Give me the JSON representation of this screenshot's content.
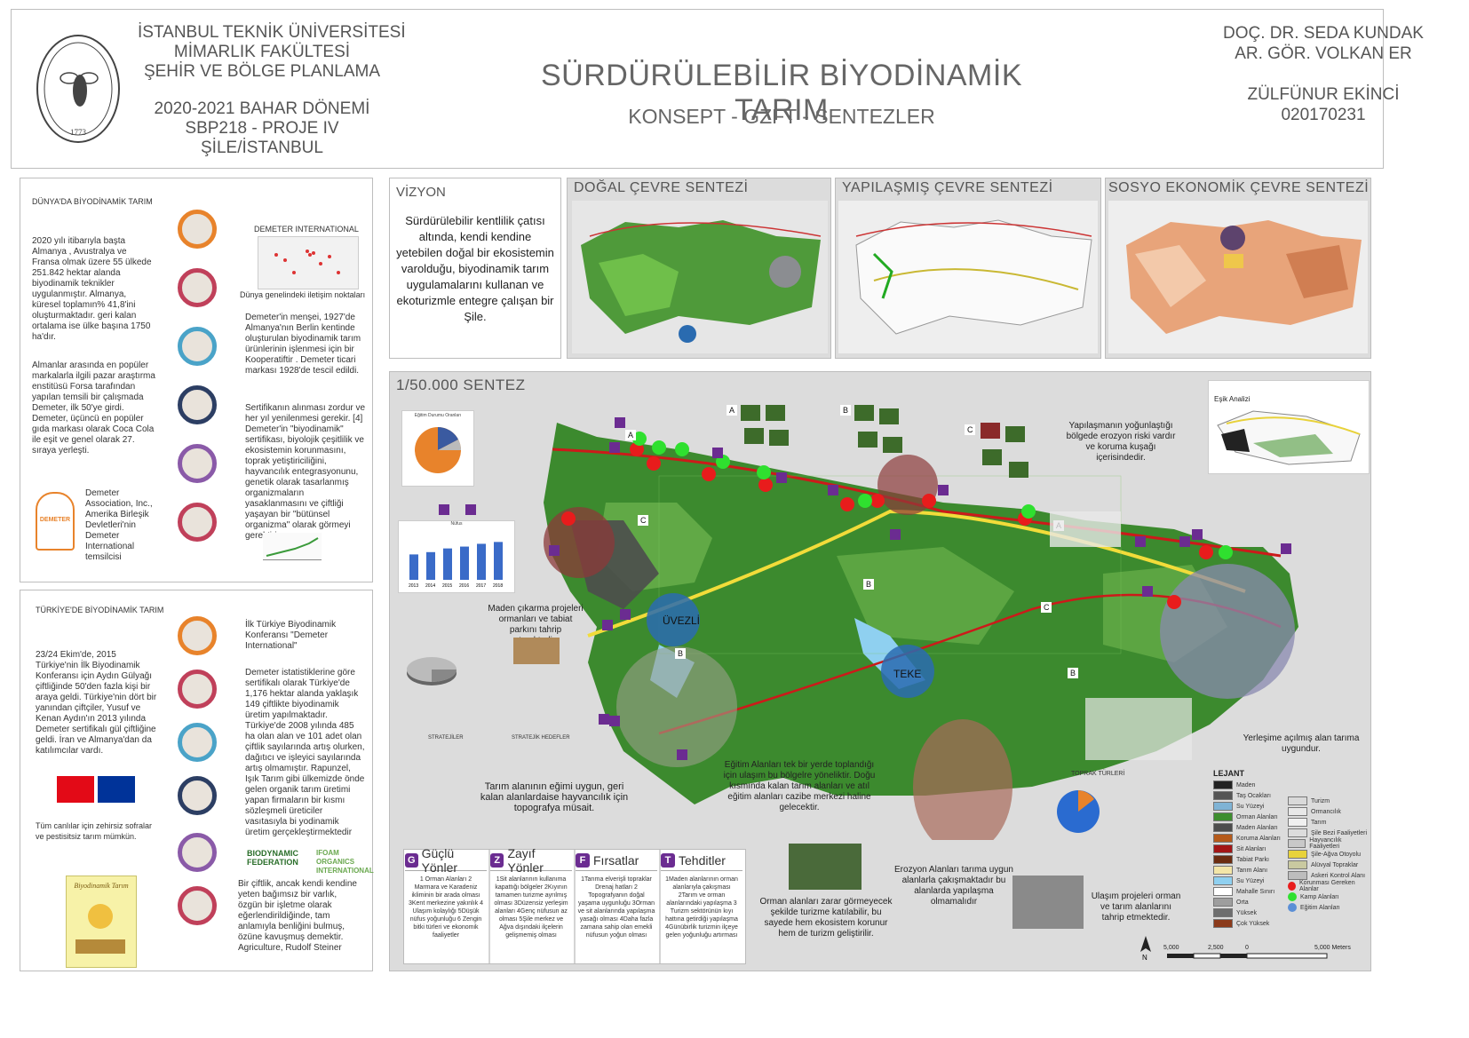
{
  "header": {
    "left_lines": [
      "İSTANBUL TEKNİK ÜNİVERSİTESİ",
      "MİMARLIK FAKÜLTESİ",
      "ŞEHİR VE BÖLGE PLANLAMA",
      "",
      "2020-2021 BAHAR DÖNEMİ",
      "SBP218 - PROJE IV",
      "ŞİLE/İSTANBUL"
    ],
    "logo_text": "İSTANBUL TEKNİK ÜNİVERSİTESİ",
    "logo_year": "1773",
    "title": "SÜRDÜRÜLEBİLİR BİYODİNAMİK TARIM",
    "subtitle": "KONSEPT - GZFT - SENTEZLER",
    "right_lines": [
      "DOÇ. DR. SEDA KUNDAK",
      "AR. GÖR. VOLKAN ER",
      "",
      "ZÜLFÜNUR EKİNCİ",
      "020170231"
    ]
  },
  "world": {
    "title": "DÜNYA'DA BİYODİNAMİK TARIM",
    "demeter_label": "DEMETER INTERNATIONAL",
    "map_caption": "Dünya genelindeki iletişim noktaları",
    "text1": "2020 yılı itibarıyla başta Almanya , Avustralya ve Fransa olmak üzere 55 ülkede 251.842 hektar alanda biyodinamik teknikler uygulanmıştır. Almanya, küresel toplamın% 41,8'ini oluşturmaktadır. geri kalan ortalama ise ülke başına 1750 ha'dır.",
    "text2": "Demeter'in menşei, 1927'de Almanya'nın Berlin kentinde oluşturulan biyodinamik tarım ürünlerinin işlenmesi için bir Kooperatiftir . Demeter ticari markası 1928'de tescil edildi.",
    "text3": "Almanlar arasında en popüler markalarla ilgili pazar araştırma enstitüsü Forsa tarafından yapılan temsili bir çalışmada Demeter, ilk 50'ye girdi. Demeter, üçüncü en popüler gıda markası olarak Coca Cola ile eşit ve genel olarak 27. sıraya yerleşti.",
    "text4": "Sertifikanın alınması zordur ve her yıl yenilenmesi gerekir. [4] Demeter'in \"biyodinamik\" sertifikası, biyolojik çeşitlilik ve ekosistemin korunmasını, toprak yetiştiriciliğini, hayvancılık entegrasyonunu, genetik olarak tasarlanmış organizmaların yasaklanmasını ve çiftliği yaşayan bir \"bütünsel organizma\" olarak görmeyi gerektirir",
    "text5": "Demeter Association, Inc., Amerika Birleşik Devletleri'nin Demeter International temsilcisi",
    "demeter_logo": "DEMETER"
  },
  "turkey": {
    "title": "TÜRKİYE'DE BİYODİNAMİK TARIM",
    "text1": "İlk Türkiye Biyodinamik Konferansı \"Demeter International\"",
    "text2": "23/24 Ekim'de, 2015 Türkiye'nin İlk Biyodinamik Konferansı için Aydın Gülyağı çiftliğinde 50'den fazla kişi bir araya geldi. Türkiye'nin dört bir yanından çiftçiler, Yusuf ve Kenan Aydın'ın 2013 yılında Demeter sertifikalı gül çiftliğine geldi. İran ve Almanya'dan da katılımcılar vardı.",
    "text3": "Demeter istatistiklerine göre sertifikalı olarak Türkiye'de 1,176 hektar alanda yaklaşık 149 çiftlikte biyodinamik üretim yapılmaktadır. Türkiye'de 2008 yılında 485 ha olan alan ve 101 adet olan çiftlik sayılarında artış olurken, dağıtıcı ve işleyici sayılarında artış olmamıştır. Rapunzel, Işık Tarım gibi ülkemizde önde gelen organik tarım üretimi yapan firmaların bir kısmı sözleşmeli üreticiler vasıtasıyla bi yodinamik üretim gerçekleştirmektedir",
    "text4": "Tüm canlılar için zehirsiz sofralar ve pestisitsiz tarım mümkün.",
    "text5": "Bir çiftlik, ancak kendi kendine yeten bağımsız bir varlık, özgün bir işletme olarak eğerlendirildiğinde, tam anlamıyla benliğini bulmuş, özüne kavuşmuş demektir. Agriculture, Rudolf Steiner",
    "logo1": "BIODYNAMIC FEDERATION",
    "logo2": "IFOAM ORGANICS INTERNATIONAL",
    "poster_title": "Biyodinamik Tarım"
  },
  "vizyon": {
    "title": "VİZYON",
    "text": "Sürdürülebilir kentlilik çatısı altında, kendi kendine yetebilen doğal bir ekosistemin varolduğu, biyodinamik tarım uygulamalarını kullanan ve ekoturizmle entegre çalışan bir Şile."
  },
  "panels": {
    "dogal": "DOĞAL ÇEVRE SENTEZİ",
    "yapilasmis": "YAPILAŞMIŞ ÇEVRE SENTEZİ",
    "sosyo": "SOSYO EKONOMİK ÇEVRE SENTEZİ",
    "sentez": "1/50.000 SENTEZ"
  },
  "map": {
    "label_uvezli": "ÜVEZLİ",
    "label_teke": "TEKE",
    "esik": "Eşik Analizi",
    "toprak": "TOPRAK TÜRLERİ",
    "pie_title": "Eğitim Durumu Oranları",
    "bar_title": "Nüfus",
    "note_yapilasma": "Yapılaşmanın yoğunlaştığı bölgede erozyon riski vardır ve koruma kuşağı içerisindedir.",
    "note_maden": "Maden çıkarma projeleri ormanları ve tabiat parkını tahrip etmektedir.",
    "note_egitim": "Eğitim Alanları tek bir yerde toplandığı için ulaşım bu bölgelre yöneliktir. Doğu kısmında kalan tarım alanları ve atıl eğitim alanları cazibe merkezi haline gelecektir.",
    "note_tarim": "Tarım alanının eğimi uygun, geri kalan alanlardaise hayvancılık için topografya müsait.",
    "note_yerlesme": "Yerleşime açılmış alan tarıma uygundur.",
    "note_erozyon": "Erozyon Alanları tarıma uygun alanlarla çakışmaktadır bu alanlarda yapılaşma olmamalıdır",
    "note_orman": "Orman alanları zarar görmeyecek şekilde turizme katılabilir, bu sayede hem ekosistem korunur hem de turizm geliştirilir.",
    "note_ulasim": "Ulaşım projeleri orman ve tarım alanlarını tahrip etmektedir.",
    "stratejiler": "STRATEJİLER",
    "stratejik_hedefler": "STRATEJİK HEDEFLER",
    "letters": [
      "A",
      "B",
      "C"
    ],
    "bar_values": [
      55,
      60,
      68,
      72,
      78,
      82
    ],
    "bar_years": [
      "2013",
      "2014",
      "2015",
      "2016",
      "2017",
      "2018"
    ],
    "pie_values": [
      70,
      10,
      20
    ],
    "scale": [
      "5,000",
      "2,500",
      "0",
      "5,000 Meters"
    ],
    "north": "N"
  },
  "gzft": {
    "g": {
      "icon": "G",
      "title": "Güçlü Yönler",
      "items": "1 Orman Alanları 2 Marmara ve Karadeniz ikliminin bir arada olması 3Kent merkezine yakınlık 4 Ulaşım kolaylığı 5Düşük nüfus yoğunluğu 6 Zengin bitki türleri ve ekonomik faaliyetler"
    },
    "z": {
      "icon": "Z",
      "title": "Zayıf Yönler",
      "items": "1Sit alanlarının kullanıma kapattığı bölgeler 2Kıyının tamamen turizme ayrılmış olması 3Düzensiz yerleşim alanları 4Genç nüfusun az olması 5Şile merkez ve Ağva dışındaki ilçelerin gelişmemiş olması"
    },
    "f": {
      "icon": "F",
      "title": "Fırsatlar",
      "items": "1Tarıma elverişli topraklar Drenaj hatları 2 Topografyanın doğal yaşama uygunluğu 3Orman ve sit alanlarında yapılaşma yasağı olması 4Daha fazla zamana sahip olan emekli nüfusun yoğun olması"
    },
    "t": {
      "icon": "T",
      "title": "Tehditler",
      "items": "1Maden alanlarının orman alanlarıyla çakışması 2Tarım ve orman alanlarındaki yapılaşma 3 Turizm sektörünün kıyı hattına getirdiği yapılaşma 4Günübirlik turizmin ilçeye gelen yoğunluğu artırması"
    }
  },
  "legend": {
    "title": "LEJANT",
    "items_left": [
      {
        "label": "Maden",
        "color": "#222222"
      },
      {
        "label": "Taş Ocakları",
        "color": "#555555"
      },
      {
        "label": "Su Yüzeyi",
        "color": "#7fb3d5"
      },
      {
        "label": "Orman Alanları",
        "color": "#3e8e2f"
      },
      {
        "label": "Maden Alanları",
        "color": "#4d4d4d"
      },
      {
        "label": "Koruma Alanları",
        "color": "#b55a1a"
      },
      {
        "label": "Sit Alanları",
        "color": "#a31515"
      },
      {
        "label": "Tabiat Parkı",
        "color": "#6b2c10"
      },
      {
        "label": "Tarım Alanı",
        "color": "#f3e6a8"
      },
      {
        "label": "Su Yüzeyi",
        "color": "#8fd0f0"
      },
      {
        "label": "Mahalle Sınırı",
        "color": "#ffffff"
      },
      {
        "label": "Orta",
        "color": "#9e9e9e"
      },
      {
        "label": "Yüksek",
        "color": "#6e6e6e"
      },
      {
        "label": "Çok Yüksek",
        "color": "#8b3a1a"
      }
    ],
    "items_right": [
      {
        "label": "Turizm",
        "color": "#d9d9d9"
      },
      {
        "label": "Ormancılık",
        "color": "#e8e8e8"
      },
      {
        "label": "Tarım",
        "color": "#f0f0f0"
      },
      {
        "label": "Şile Bezi Faaliyetleri",
        "color": "#dcdcdc"
      },
      {
        "label": "Hayvancılık Faaliyetleri",
        "color": "#c8c8c8"
      },
      {
        "label": "Şile-Ağva Otoyolu",
        "color": "#e8d23a"
      },
      {
        "label": "Alüvyal Topraklar",
        "color": "#c9c9a0"
      },
      {
        "label": "Askeri Kontrol Alanı",
        "color": "#bdbdbd"
      },
      {
        "label": "Korunması Gereken Alanlar",
        "color": "#e81c1c"
      },
      {
        "label": "Kamp Alanları",
        "color": "#2fe02f"
      },
      {
        "label": "Eğitim Alanları",
        "color": "#5b8fd6"
      }
    ]
  },
  "colors": {
    "forest": "#3c8a2e",
    "forest_light": "#6ab04c",
    "road_red": "#cc1a1a",
    "road_yellow": "#f2dc3a",
    "accent_purple": "#6b2c91",
    "orange": "#e8832b"
  }
}
